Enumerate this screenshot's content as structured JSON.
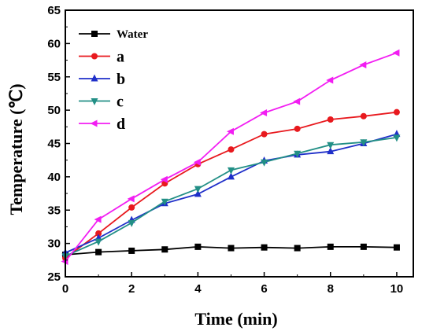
{
  "chart_data": {
    "type": "line",
    "xlabel": "Time (min)",
    "ylabel": "Temperature (℃)",
    "xlim": [
      0,
      10.5
    ],
    "ylim": [
      25,
      65
    ],
    "xticks": [
      0,
      2,
      4,
      6,
      8,
      10
    ],
    "yticks": [
      25,
      30,
      35,
      40,
      45,
      50,
      55,
      60,
      65
    ],
    "grid": false,
    "legend_position": "top-left",
    "series": [
      {
        "name": "Water",
        "color": "#000000",
        "marker": "square",
        "x": [
          0,
          1,
          2,
          3,
          4,
          5,
          6,
          7,
          8,
          9,
          10
        ],
        "y": [
          28.3,
          28.7,
          28.9,
          29.1,
          29.5,
          29.3,
          29.4,
          29.3,
          29.5,
          29.5,
          29.4
        ]
      },
      {
        "name": "a",
        "color": "#e8191e",
        "marker": "circle",
        "x": [
          0,
          1,
          2,
          3,
          4,
          5,
          6,
          7,
          8,
          9,
          10
        ],
        "y": [
          27.8,
          31.5,
          35.4,
          39.0,
          41.9,
          44.1,
          46.4,
          47.2,
          48.6,
          49.1,
          49.7
        ]
      },
      {
        "name": "b",
        "color": "#1f2fc9",
        "marker": "triangle-up",
        "x": [
          0,
          1,
          2,
          3,
          4,
          5,
          6,
          7,
          8,
          9,
          10
        ],
        "y": [
          28.6,
          30.8,
          33.5,
          36.0,
          37.4,
          40.0,
          42.4,
          43.3,
          43.8,
          45.0,
          46.4
        ]
      },
      {
        "name": "c",
        "color": "#228f86",
        "marker": "triangle-down",
        "x": [
          0,
          1,
          2,
          3,
          4,
          5,
          6,
          7,
          8,
          9,
          10
        ],
        "y": [
          28.1,
          30.3,
          33.1,
          36.3,
          38.2,
          41.0,
          42.2,
          43.5,
          44.8,
          45.2,
          45.9
        ]
      },
      {
        "name": "d",
        "color": "#f21ef2",
        "marker": "triangle-left",
        "x": [
          0,
          1,
          2,
          3,
          4,
          5,
          6,
          7,
          8,
          9,
          10
        ],
        "y": [
          27.3,
          33.6,
          36.7,
          39.6,
          42.2,
          46.8,
          49.6,
          51.3,
          54.5,
          56.8,
          58.6
        ]
      }
    ]
  }
}
